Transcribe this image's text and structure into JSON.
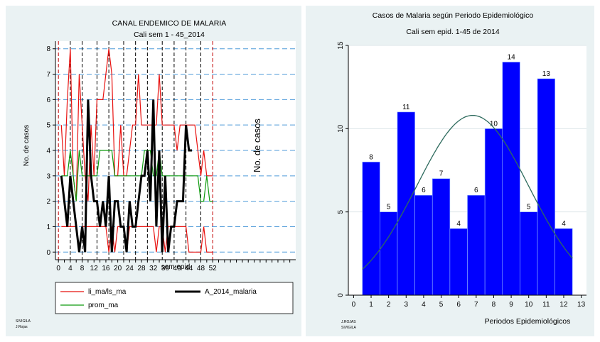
{
  "chart_data": [
    {
      "type": "line",
      "title": "CANAL ENDEMICO DE MALARIA",
      "subtitle": "Cali sem 1 - 45_2014",
      "xlabel": "sem epid",
      "ylabel": "No. de casos",
      "annotation": "No. de casos",
      "xlim": [
        -1,
        80
      ],
      "ylim": [
        -0.3,
        8.3
      ],
      "x_ticks": [
        0,
        4,
        8,
        12,
        16,
        20,
        24,
        28,
        32,
        36,
        40,
        44,
        48,
        52
      ],
      "y_ticks": [
        0,
        1,
        2,
        3,
        4,
        5,
        6,
        7,
        8
      ],
      "vlines_red": [
        0,
        52
      ],
      "vlines_black": [
        4,
        8,
        13,
        17,
        22,
        26,
        30,
        35,
        39,
        43,
        48
      ],
      "hlines_blue": [
        0,
        1,
        2,
        3,
        4,
        5,
        6,
        7,
        8
      ],
      "grid": true,
      "legend_position": "bottom",
      "legend": [
        "li_ma/ls_ma",
        "A_2014_malaria",
        "prom_ma"
      ],
      "series": [
        {
          "name": "li_ma/ls_ma",
          "color": "#e8110f",
          "x": [
            1,
            2,
            3,
            4,
            5,
            6,
            7,
            8,
            9,
            10,
            11,
            12,
            13,
            14,
            15,
            16,
            17,
            18,
            19,
            20,
            21,
            22,
            23,
            24,
            25,
            26,
            27,
            28,
            29,
            30,
            31,
            32,
            33,
            34,
            35,
            36,
            37,
            38,
            39,
            40,
            41,
            42,
            43,
            44,
            45,
            46,
            47,
            48,
            49,
            50,
            51,
            52
          ],
          "values": [
            5,
            3,
            6,
            8,
            3,
            2,
            7,
            5,
            3,
            2,
            5,
            3,
            6,
            6,
            6,
            7,
            8,
            7,
            3,
            3,
            5,
            3,
            3,
            4,
            5,
            5,
            7,
            5,
            5,
            5,
            5,
            5,
            5,
            7,
            5,
            5,
            5,
            5,
            5,
            4,
            5,
            5,
            5,
            5,
            5,
            5,
            4,
            3,
            4,
            3,
            3,
            3
          ]
        },
        {
          "name": "li_ma/ls_ma (inferior)",
          "color": "#e8110f",
          "x": [
            1,
            2,
            3,
            4,
            5,
            6,
            7,
            8,
            9,
            10,
            11,
            12,
            13,
            14,
            15,
            16,
            17,
            18,
            19,
            20,
            21,
            22,
            23,
            24,
            25,
            26,
            27,
            28,
            29,
            30,
            31,
            32,
            33,
            34,
            35,
            36,
            37,
            38,
            39,
            40,
            41,
            42,
            43,
            44,
            45,
            46,
            47,
            48,
            49,
            50,
            51,
            52
          ],
          "values": [
            1,
            1,
            1,
            1,
            1,
            1,
            0,
            1,
            1,
            1,
            1,
            1,
            1,
            1,
            1,
            1,
            0,
            1,
            0,
            1,
            1,
            1,
            0,
            1,
            1,
            1,
            1,
            1,
            1,
            1,
            1,
            1,
            0,
            1,
            1,
            0,
            1,
            1,
            1,
            1,
            1,
            1,
            1,
            0,
            0,
            0,
            0,
            0,
            1,
            0,
            0,
            0
          ]
        },
        {
          "name": "prom_ma",
          "color": "#0e9a0e",
          "x": [
            1,
            2,
            3,
            4,
            5,
            6,
            7,
            8,
            9,
            10,
            11,
            12,
            13,
            14,
            15,
            16,
            17,
            18,
            19,
            20,
            21,
            22,
            23,
            24,
            25,
            26,
            27,
            28,
            29,
            30,
            31,
            32,
            33,
            34,
            35,
            36,
            37,
            38,
            39,
            40,
            41,
            42,
            43,
            44,
            45,
            46,
            47,
            48,
            49,
            50,
            51,
            52
          ],
          "values": [
            3,
            3,
            3,
            4,
            3,
            2,
            4,
            3,
            3,
            3,
            3,
            3,
            3,
            4,
            4,
            4,
            4,
            4,
            3,
            3,
            3,
            3,
            3,
            3,
            3,
            3,
            3,
            3,
            4,
            4,
            4,
            3,
            3,
            4,
            3,
            3,
            3,
            3,
            3,
            3,
            3,
            3,
            3,
            3,
            3,
            3,
            3,
            2,
            2,
            3,
            2,
            2
          ]
        },
        {
          "name": "A_2014_malaria",
          "color": "#000000",
          "x": [
            1,
            2,
            3,
            4,
            5,
            6,
            7,
            8,
            9,
            10,
            11,
            12,
            13,
            14,
            15,
            16,
            17,
            18,
            19,
            20,
            21,
            22,
            23,
            24,
            25,
            26,
            27,
            28,
            29,
            30,
            31,
            32,
            33,
            34,
            35,
            36,
            37,
            38,
            39,
            40,
            41,
            42,
            43,
            44,
            45
          ],
          "values": [
            3,
            2,
            1,
            3,
            2,
            1,
            0,
            1,
            0,
            6,
            3,
            2,
            2,
            1,
            2,
            1,
            3,
            0,
            2,
            2,
            1,
            1,
            0,
            2,
            1,
            1,
            2,
            3,
            3,
            4,
            2,
            6,
            1,
            4,
            0,
            3,
            0,
            1,
            1,
            2,
            2,
            2,
            5,
            4,
            4
          ]
        }
      ]
    },
    {
      "type": "bar",
      "title": "Casos de Malaria según Periodo Epidemiológico",
      "subtitle": "Cali sem epid. 1-45 de 2014",
      "xlabel": "Periodos Epidemiológicos",
      "ylabel": "",
      "xlim": [
        -0.3,
        13.3
      ],
      "ylim": [
        0,
        15
      ],
      "x_ticks": [
        0,
        1,
        2,
        3,
        4,
        5,
        6,
        7,
        8,
        9,
        10,
        11,
        12,
        13
      ],
      "y_ticks": [
        0,
        5,
        10,
        15
      ],
      "grid": true,
      "bar_color": "#0000ff",
      "curve_color": "#2e6b5e",
      "categories": [
        1,
        2,
        3,
        4,
        5,
        6,
        7,
        8,
        9,
        10,
        11,
        12
      ],
      "values": [
        8,
        5,
        11,
        6,
        7,
        4,
        6,
        10,
        14,
        5,
        13,
        4
      ],
      "normal_curve": {
        "mean": 6.8,
        "sd": 3.2,
        "peak": 10.8
      }
    }
  ],
  "footer": {
    "left_line1": "SIVIGILA",
    "left_line2": "J.Rojas",
    "right_line1": "J.ROJAS",
    "right_line2": "SIVIGILA"
  }
}
